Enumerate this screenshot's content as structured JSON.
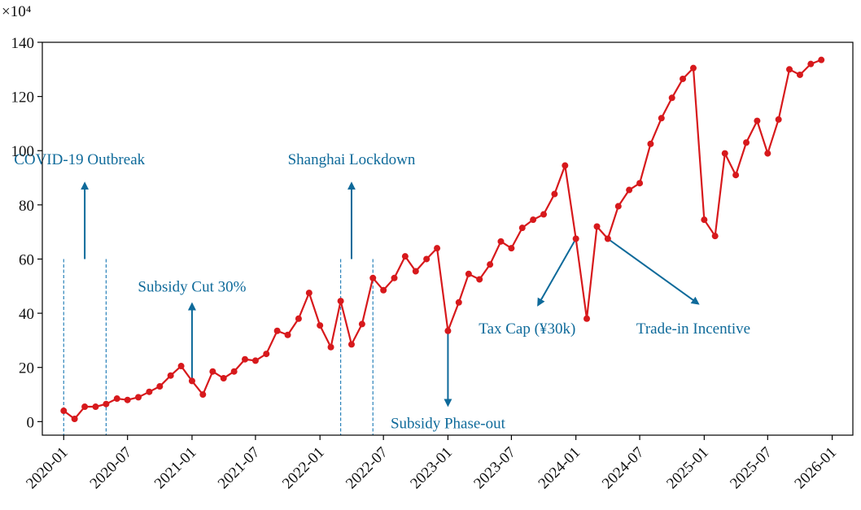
{
  "chart_data": {
    "type": "line",
    "y_multiplier_label": "×10⁴",
    "xlabel": "",
    "ylabel": "",
    "ylim": [
      -5,
      140
    ],
    "xlim": [
      "2019-11-01",
      "2026-03-01"
    ],
    "x_ticks": [
      "2020-01",
      "2020-07",
      "2021-01",
      "2021-07",
      "2022-01",
      "2022-07",
      "2023-01",
      "2023-07",
      "2024-01",
      "2024-07",
      "2025-01",
      "2025-07",
      "2026-01"
    ],
    "y_ticks": [
      0,
      20,
      40,
      60,
      80,
      100,
      120,
      140
    ],
    "grid": false,
    "series": [
      {
        "color": "#d7191c",
        "points": [
          [
            "2020-01",
            4
          ],
          [
            "2020-02",
            1
          ],
          [
            "2020-03",
            5.5
          ],
          [
            "2020-04",
            5.5
          ],
          [
            "2020-05",
            6.5
          ],
          [
            "2020-06",
            8.5
          ],
          [
            "2020-07",
            8
          ],
          [
            "2020-08",
            9
          ],
          [
            "2020-09",
            11
          ],
          [
            "2020-10",
            13
          ],
          [
            "2020-11",
            17
          ],
          [
            "2020-12",
            20.5
          ],
          [
            "2021-01",
            15
          ],
          [
            "2021-02",
            10
          ],
          [
            "2021-03",
            18.5
          ],
          [
            "2021-04",
            16
          ],
          [
            "2021-05",
            18.5
          ],
          [
            "2021-06",
            23
          ],
          [
            "2021-07",
            22.5
          ],
          [
            "2021-08",
            25
          ],
          [
            "2021-09",
            33.5
          ],
          [
            "2021-10",
            32
          ],
          [
            "2021-11",
            38
          ],
          [
            "2021-12",
            47.5
          ],
          [
            "2022-01",
            35.5
          ],
          [
            "2022-02",
            27.5
          ],
          [
            "2022-03",
            44.5
          ],
          [
            "2022-04",
            28.5
          ],
          [
            "2022-05",
            36
          ],
          [
            "2022-06",
            53
          ],
          [
            "2022-07",
            48.5
          ],
          [
            "2022-08",
            53
          ],
          [
            "2022-09",
            61
          ],
          [
            "2022-10",
            55.5
          ],
          [
            "2022-11",
            60
          ],
          [
            "2022-12",
            64
          ],
          [
            "2023-01",
            33.5
          ],
          [
            "2023-02",
            44
          ],
          [
            "2023-03",
            54.5
          ],
          [
            "2023-04",
            52.5
          ],
          [
            "2023-05",
            58
          ],
          [
            "2023-06",
            66.5
          ],
          [
            "2023-07",
            64
          ],
          [
            "2023-08",
            71.5
          ],
          [
            "2023-09",
            74.5
          ],
          [
            "2023-10",
            76.5
          ],
          [
            "2023-11",
            84
          ],
          [
            "2023-12",
            94.5
          ],
          [
            "2024-01",
            67.5
          ],
          [
            "2024-02",
            38
          ],
          [
            "2024-03",
            72
          ],
          [
            "2024-04",
            67.5
          ],
          [
            "2024-05",
            79.5
          ],
          [
            "2024-06",
            85.5
          ],
          [
            "2024-07",
            88
          ],
          [
            "2024-08",
            102.5
          ],
          [
            "2024-09",
            112
          ],
          [
            "2024-10",
            119.5
          ],
          [
            "2024-11",
            126.5
          ],
          [
            "2024-12",
            130.5
          ],
          [
            "2025-01",
            74.5
          ],
          [
            "2025-02",
            68.5
          ],
          [
            "2025-03",
            99
          ],
          [
            "2025-04",
            91
          ],
          [
            "2025-05",
            103
          ],
          [
            "2025-06",
            111
          ],
          [
            "2025-07",
            99
          ],
          [
            "2025-08",
            111.5
          ],
          [
            "2025-09",
            130
          ],
          [
            "2025-10",
            128
          ],
          [
            "2025-11",
            132
          ],
          [
            "2025-12",
            133.5
          ]
        ]
      }
    ],
    "annotation_color": "#0e6a9a",
    "annotations": [
      {
        "text": "COVID-19 Outbreak",
        "text_x": "2020-02-15",
        "text_y": 95,
        "arrow_from": [
          "2020-03-01",
          60
        ],
        "arrow_to": [
          "2020-03-01",
          88
        ]
      },
      {
        "text": "Subsidy Cut 30%",
        "text_x": "2021-01-01",
        "text_y": 48,
        "arrow_from": [
          "2021-01-01",
          15
        ],
        "arrow_to": [
          "2021-01-01",
          43.5
        ]
      },
      {
        "text": "Shanghai Lockdown",
        "text_x": "2022-04-01",
        "text_y": 95,
        "arrow_from": [
          "2022-04-01",
          60
        ],
        "arrow_to": [
          "2022-04-01",
          88
        ]
      },
      {
        "text": "Subsidy Phase-out",
        "text_x": "2023-01-01",
        "text_y": -2.5,
        "arrow_from": [
          "2023-01-01",
          33.5
        ],
        "arrow_to": [
          "2023-01-01",
          6
        ]
      },
      {
        "text": "Tax Cap (¥30k)",
        "text_x": "2023-08-15",
        "text_y": 32.5,
        "arrow_from": [
          "2024-01-01",
          67.5
        ],
        "arrow_to": [
          "2023-09-15",
          43
        ]
      },
      {
        "text": "Trade-in Incentive",
        "text_x": "2024-12-01",
        "text_y": 32.5,
        "arrow_from": [
          "2024-04-01",
          67.5
        ],
        "arrow_to": [
          "2024-12-15",
          43.5
        ]
      }
    ],
    "shaded_windows": [
      {
        "start": "2020-01-01",
        "end": "2020-05-01",
        "y_top": 60
      },
      {
        "start": "2022-03-01",
        "end": "2022-06-01",
        "y_top": 60
      }
    ]
  }
}
